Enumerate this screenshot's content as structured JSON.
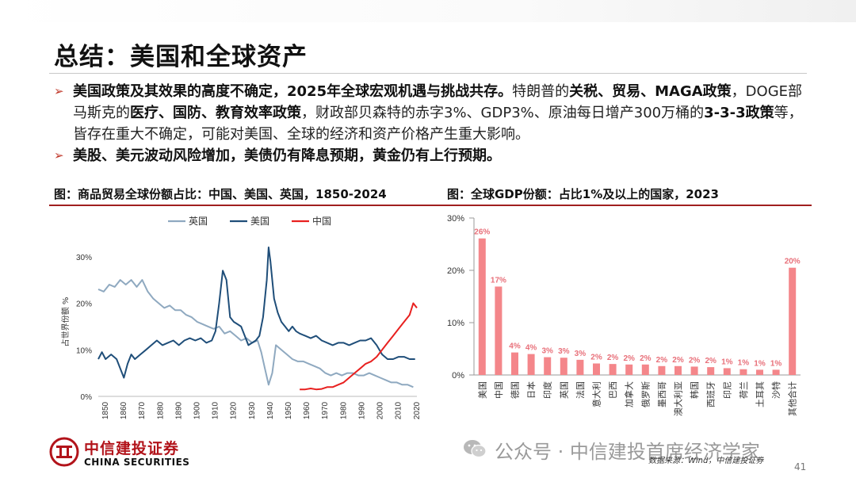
{
  "slide": {
    "title": "总结：美国和全球资产",
    "bullets": [
      {
        "runs": [
          {
            "text": "美国政策及其效果的高度不确定，2025年全球宏观机遇与挑战共存。",
            "bold": true
          },
          {
            "text": "特朗普的",
            "bold": false
          },
          {
            "text": "关税、贸易、MAGA政策",
            "bold": true
          },
          {
            "text": "，DOGE部马斯克的",
            "bold": false
          },
          {
            "text": "医疗、国防、教育效率政策",
            "bold": true
          },
          {
            "text": "，财政部贝森特的赤字3%、GDP3%、原油每日增产300万桶的",
            "bold": false
          },
          {
            "text": "3-3-3政策",
            "bold": true
          },
          {
            "text": "等，皆存在重大不确定，可能对美国、全球的经济和资产价格产生重大影响。",
            "bold": false
          }
        ]
      },
      {
        "runs": [
          {
            "text": "美股、美元波动风险增加，美债仍有降息预期，黄金仍有上行预期。",
            "bold": true
          }
        ]
      }
    ],
    "bullet_marker": "➢",
    "left_caption": "图：商品贸易全球份额占比：中国、美国、英国，1850-2024",
    "right_caption": "图：全球GDP份额：占比1%及以上的国家，2023",
    "footer": {
      "logo_cn": "中信建投证券",
      "logo_en": "CHINA SECURITIES",
      "watermark": "公众号 · 中信建投首席经济学家",
      "source": "数据来源：Wind，中信建投证券",
      "page": "41"
    },
    "colors": {
      "accent_red": "#a01f1f",
      "uk_line": "#8fa9c0",
      "us_line": "#1f4e79",
      "cn_line": "#e8201f",
      "bar": "#f4868a",
      "bar_label": "#e8707a"
    }
  },
  "chart_data": [
    {
      "type": "line",
      "title": "",
      "xlabel": "",
      "ylabel": "占世界份额 %",
      "xlim": [
        1850,
        2024
      ],
      "ylim": [
        0,
        32
      ],
      "yticks": [
        "0%",
        "10%",
        "20%",
        "30%"
      ],
      "xticks": [
        "1850",
        "1860",
        "1870",
        "1880",
        "1890",
        "1900",
        "1910",
        "1920",
        "1930",
        "1940",
        "1950",
        "1960",
        "1970",
        "1980",
        "1990",
        "2000",
        "2010",
        "2020"
      ],
      "legend_position": "top-left",
      "series": [
        {
          "name": "英国",
          "color": "#8fa9c0",
          "points": [
            [
              1850,
              23
            ],
            [
              1853,
              22.5
            ],
            [
              1856,
              24
            ],
            [
              1859,
              23.5
            ],
            [
              1862,
              25
            ],
            [
              1865,
              24
            ],
            [
              1868,
              25
            ],
            [
              1871,
              23.5
            ],
            [
              1874,
              25
            ],
            [
              1877,
              22.5
            ],
            [
              1880,
              21
            ],
            [
              1883,
              20
            ],
            [
              1886,
              19
            ],
            [
              1889,
              19.5
            ],
            [
              1892,
              18.5
            ],
            [
              1895,
              18.5
            ],
            [
              1898,
              17.5
            ],
            [
              1901,
              17
            ],
            [
              1904,
              16
            ],
            [
              1907,
              15.5
            ],
            [
              1910,
              15
            ],
            [
              1913,
              14.5
            ],
            [
              1916,
              15
            ],
            [
              1919,
              13.5
            ],
            [
              1922,
              14
            ],
            [
              1925,
              13
            ],
            [
              1928,
              12
            ],
            [
              1931,
              12.5
            ],
            [
              1934,
              11.5
            ],
            [
              1937,
              12
            ],
            [
              1939,
              9.5
            ],
            [
              1941,
              6
            ],
            [
              1943,
              2.5
            ],
            [
              1945,
              5
            ],
            [
              1947,
              11
            ],
            [
              1950,
              10
            ],
            [
              1953,
              9
            ],
            [
              1956,
              8
            ],
            [
              1959,
              7.5
            ],
            [
              1962,
              7.5
            ],
            [
              1965,
              7
            ],
            [
              1968,
              6.5
            ],
            [
              1971,
              6
            ],
            [
              1974,
              5
            ],
            [
              1977,
              4.5
            ],
            [
              1980,
              5
            ],
            [
              1983,
              4.5
            ],
            [
              1986,
              5
            ],
            [
              1989,
              5
            ],
            [
              1992,
              4.5
            ],
            [
              1995,
              4.5
            ],
            [
              1998,
              5
            ],
            [
              2001,
              4.5
            ],
            [
              2004,
              4
            ],
            [
              2007,
              3.5
            ],
            [
              2010,
              3
            ],
            [
              2013,
              3
            ],
            [
              2016,
              2.5
            ],
            [
              2019,
              2.5
            ],
            [
              2022,
              2
            ]
          ]
        },
        {
          "name": "美国",
          "color": "#1f4e79",
          "points": [
            [
              1850,
              8
            ],
            [
              1852,
              9.5
            ],
            [
              1854,
              8
            ],
            [
              1857,
              9
            ],
            [
              1860,
              8
            ],
            [
              1862,
              6
            ],
            [
              1864,
              4
            ],
            [
              1866,
              7
            ],
            [
              1868,
              9
            ],
            [
              1870,
              8
            ],
            [
              1873,
              9
            ],
            [
              1876,
              10
            ],
            [
              1879,
              11
            ],
            [
              1882,
              12
            ],
            [
              1885,
              11
            ],
            [
              1888,
              11.5
            ],
            [
              1891,
              12
            ],
            [
              1894,
              11
            ],
            [
              1897,
              12
            ],
            [
              1900,
              12.5
            ],
            [
              1903,
              12
            ],
            [
              1906,
              12.5
            ],
            [
              1909,
              11.5
            ],
            [
              1912,
              12
            ],
            [
              1914,
              14
            ],
            [
              1916,
              20
            ],
            [
              1918,
              27
            ],
            [
              1920,
              25
            ],
            [
              1922,
              17
            ],
            [
              1924,
              16
            ],
            [
              1926,
              15.5
            ],
            [
              1928,
              15
            ],
            [
              1930,
              13
            ],
            [
              1932,
              11
            ],
            [
              1934,
              11.5
            ],
            [
              1936,
              12
            ],
            [
              1938,
              13
            ],
            [
              1940,
              17
            ],
            [
              1942,
              25
            ],
            [
              1943,
              32
            ],
            [
              1944,
              29
            ],
            [
              1946,
              21
            ],
            [
              1948,
              18
            ],
            [
              1950,
              16
            ],
            [
              1952,
              15
            ],
            [
              1954,
              14
            ],
            [
              1956,
              15
            ],
            [
              1958,
              14
            ],
            [
              1960,
              13.5
            ],
            [
              1963,
              13
            ],
            [
              1966,
              12.5
            ],
            [
              1969,
              13
            ],
            [
              1972,
              12
            ],
            [
              1975,
              11.5
            ],
            [
              1978,
              11
            ],
            [
              1981,
              11.5
            ],
            [
              1984,
              11.5
            ],
            [
              1987,
              11
            ],
            [
              1990,
              11.5
            ],
            [
              1993,
              12
            ],
            [
              1996,
              12
            ],
            [
              1999,
              12.5
            ],
            [
              2002,
              11
            ],
            [
              2005,
              9
            ],
            [
              2008,
              8
            ],
            [
              2011,
              8
            ],
            [
              2014,
              8.5
            ],
            [
              2017,
              8.5
            ],
            [
              2020,
              8
            ],
            [
              2023,
              8
            ]
          ]
        },
        {
          "name": "中国",
          "color": "#e8201f",
          "points": [
            [
              1960,
              1.5
            ],
            [
              1963,
              1.5
            ],
            [
              1966,
              1.7
            ],
            [
              1969,
              1.5
            ],
            [
              1972,
              1.6
            ],
            [
              1975,
              2
            ],
            [
              1978,
              2
            ],
            [
              1981,
              2.5
            ],
            [
              1984,
              3
            ],
            [
              1987,
              4
            ],
            [
              1990,
              5
            ],
            [
              1993,
              6
            ],
            [
              1996,
              7
            ],
            [
              1999,
              7.5
            ],
            [
              2002,
              8.5
            ],
            [
              2005,
              10
            ],
            [
              2008,
              11.5
            ],
            [
              2011,
              13
            ],
            [
              2014,
              14.5
            ],
            [
              2017,
              16
            ],
            [
              2020,
              17.5
            ],
            [
              2022,
              20
            ],
            [
              2024,
              19
            ]
          ]
        }
      ]
    },
    {
      "type": "bar",
      "title": "",
      "xlabel": "",
      "ylabel": "",
      "ylim": [
        0,
        30
      ],
      "yticks": [
        "0%",
        "10%",
        "20%",
        "30%"
      ],
      "categories": [
        "美国",
        "中国",
        "德国",
        "日本",
        "印度",
        "英国",
        "法国",
        "意大利",
        "巴西",
        "加拿大",
        "俄罗斯",
        "墨西哥",
        "澳大利亚",
        "韩国",
        "西班牙",
        "印尼",
        "荷兰",
        "土耳其",
        "沙特",
        "其他合计"
      ],
      "values": [
        26,
        17,
        4,
        4,
        3,
        3,
        3,
        2,
        2,
        2,
        2,
        2,
        2,
        2,
        2,
        1,
        1,
        1,
        1,
        20
      ],
      "plot_values": [
        26.1,
        16.9,
        4.3,
        4.0,
        3.4,
        3.3,
        2.9,
        2.2,
        2.1,
        2.0,
        2.0,
        1.7,
        1.7,
        1.6,
        1.5,
        1.3,
        1.1,
        1.0,
        1.0,
        20.5
      ],
      "data_labels": [
        "26%",
        "17%",
        "4%",
        "4%",
        "3%",
        "3%",
        "3%",
        "2%",
        "2%",
        "2%",
        "2%",
        "2%",
        "2%",
        "2%",
        "2%",
        "1%",
        "1%",
        "1%",
        "1%",
        "20%"
      ]
    }
  ]
}
